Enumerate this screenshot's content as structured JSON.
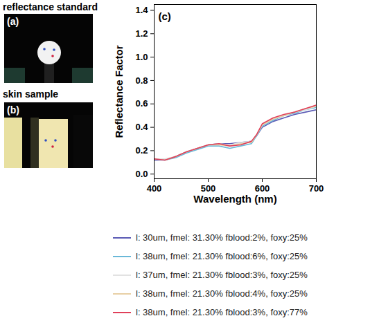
{
  "photos": [
    {
      "label": "(a)",
      "title": "reflectance standard"
    },
    {
      "label": "(b)",
      "title": "skin sample"
    }
  ],
  "chart_data": {
    "type": "line",
    "annotation": "(c)",
    "x_label": "Wavelength (nm)",
    "y_label": "Reflectance Factor",
    "x": [
      400,
      420,
      440,
      460,
      480,
      500,
      520,
      540,
      560,
      580,
      590,
      600,
      620,
      640,
      660,
      680,
      700
    ],
    "series": [
      {
        "name": "l: 30um, fmel: 31.30% fblood:2%, foxy:25%",
        "color": "#5a5ab4",
        "values": [
          0.12,
          0.12,
          0.15,
          0.19,
          0.22,
          0.25,
          0.26,
          0.26,
          0.27,
          0.28,
          0.33,
          0.4,
          0.45,
          0.48,
          0.51,
          0.53,
          0.55
        ]
      },
      {
        "name": "l: 38um, fmel: 21.30% fblood:6%, foxy:25%",
        "color": "#6ab8d8",
        "values": [
          0.13,
          0.12,
          0.14,
          0.18,
          0.21,
          0.24,
          0.24,
          0.22,
          0.24,
          0.26,
          0.33,
          0.41,
          0.46,
          0.5,
          0.52,
          0.55,
          0.57
        ]
      },
      {
        "name": "l: 37um, fmel: 21.30% fblood:3%, foxy:25%",
        "color": "#e2e2e2",
        "values": [
          0.13,
          0.13,
          0.15,
          0.19,
          0.22,
          0.25,
          0.26,
          0.25,
          0.27,
          0.28,
          0.34,
          0.42,
          0.47,
          0.5,
          0.53,
          0.55,
          0.58
        ]
      },
      {
        "name": "l: 38um, fmel: 21.30% fblood:4%, foxy:25%",
        "color": "#e8cfa5",
        "values": [
          0.13,
          0.12,
          0.15,
          0.19,
          0.22,
          0.25,
          0.25,
          0.24,
          0.26,
          0.27,
          0.34,
          0.42,
          0.47,
          0.5,
          0.53,
          0.56,
          0.58
        ]
      },
      {
        "name": "l: 38um, fmel: 21.30% fblood:3%, foxy:77%",
        "color": "#e0405a",
        "values": [
          0.13,
          0.12,
          0.15,
          0.19,
          0.22,
          0.25,
          0.26,
          0.24,
          0.25,
          0.28,
          0.34,
          0.43,
          0.48,
          0.51,
          0.53,
          0.56,
          0.59
        ]
      }
    ],
    "xlim": [
      400,
      700
    ],
    "xticks": [
      400,
      500,
      600,
      700
    ],
    "ylim": [
      -0.04,
      1.45
    ],
    "yticks": [
      {
        "value": 0,
        "label": "0.0"
      },
      0.2,
      0.4,
      0.6,
      0.8,
      {
        "value": 1,
        "label": "1.0"
      },
      1.2,
      1.4
    ],
    "grid": false,
    "legend": "bottom"
  }
}
